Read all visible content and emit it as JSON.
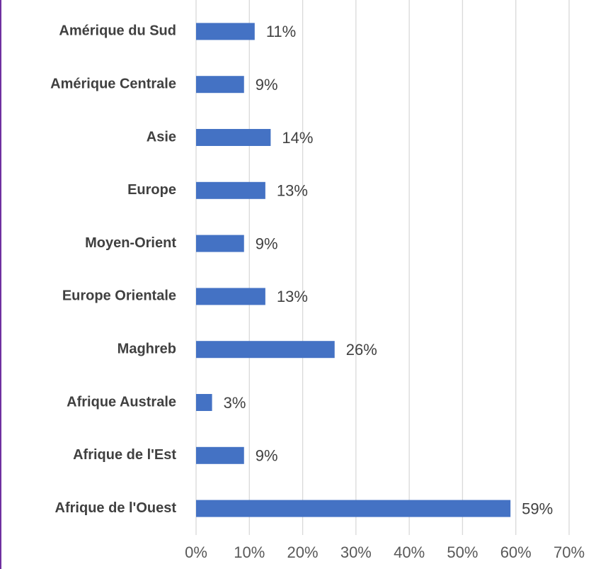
{
  "chart_data": {
    "type": "hbar",
    "categories": [
      "Amérique du Sud",
      "Amérique Centrale",
      "Asie",
      "Europe",
      "Moyen-Orient",
      "Europe Orientale",
      "Maghreb",
      "Afrique Australe",
      "Afrique de l'Est",
      "Afrique de l'Ouest"
    ],
    "values": [
      11,
      9,
      14,
      13,
      9,
      13,
      26,
      3,
      9,
      59
    ],
    "value_labels": [
      "11%",
      "9%",
      "14%",
      "13%",
      "9%",
      "13%",
      "26%",
      "3%",
      "9%",
      "59%"
    ],
    "color": "#4472c4",
    "xlim": [
      0,
      70
    ],
    "xticks": [
      {
        "value": 0,
        "label": "0%"
      },
      {
        "value": 10,
        "label": "10%"
      },
      {
        "value": 20,
        "label": "20%"
      },
      {
        "value": 30,
        "label": "30%"
      },
      {
        "value": 40,
        "label": "40%"
      },
      {
        "value": 50,
        "label": "50%"
      },
      {
        "value": 60,
        "label": "60%"
      },
      {
        "value": 70,
        "label": "70%"
      }
    ],
    "grid": true
  }
}
